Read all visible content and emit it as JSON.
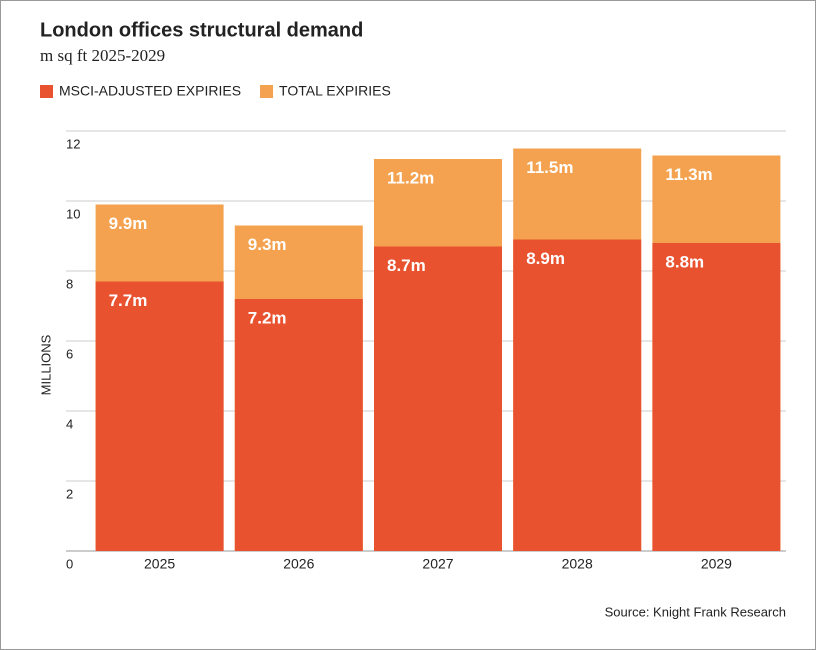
{
  "chart_data": {
    "type": "bar",
    "overlap": true,
    "title": "London offices structural demand",
    "subtitle": "m sq ft 2025-2029",
    "y_label": "MILLIONS",
    "source": "Source: Knight Frank Research",
    "categories": [
      "2025",
      "2026",
      "2027",
      "2028",
      "2029"
    ],
    "series": [
      {
        "name": "TOTAL EXPIRIES",
        "color": "#f4a24f",
        "values": [
          9.9,
          9.3,
          11.2,
          11.5,
          11.3
        ],
        "value_labels": [
          "9.9m",
          "9.3m",
          "11.2m",
          "11.5m",
          "11.3m"
        ]
      },
      {
        "name": "MSCI-ADJUSTED EXPIRIES",
        "color": "#e9522f",
        "values": [
          7.7,
          7.2,
          8.7,
          8.9,
          8.8
        ],
        "value_labels": [
          "7.7m",
          "7.2m",
          "8.7m",
          "8.9m",
          "8.8m"
        ]
      }
    ],
    "legend_order": [
      1,
      0
    ],
    "ylim": [
      0,
      12
    ],
    "yticks": [
      0,
      2,
      4,
      6,
      8,
      10,
      12
    ],
    "grid": true
  }
}
